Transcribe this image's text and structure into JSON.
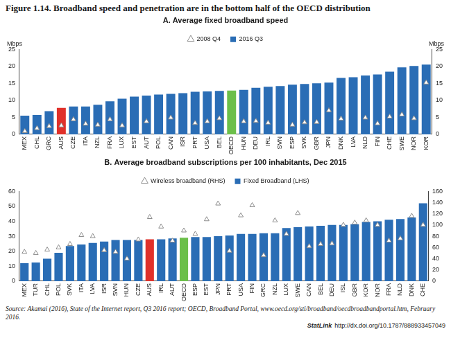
{
  "title": "Figure 1.14.  Broadband speed and penetration are in the bottom half of the OECD distribution",
  "chart_data": [
    {
      "type": "bar",
      "title": "A. Average fixed broadband speed",
      "ylabel": "Mbps",
      "y2label": "Mbps",
      "categories": [
        "MEX",
        "CHL",
        "GRC",
        "AUS",
        "CZE",
        "ITA",
        "NZL",
        "FRA",
        "LUX",
        "EST",
        "AUT",
        "POL",
        "CAN",
        "ISR",
        "PRT",
        "USA",
        "BEL",
        "OECD",
        "HUN",
        "DEU",
        "IRL",
        "SVN",
        "ESP",
        "SVK",
        "GBR",
        "JPN",
        "DNK",
        "LVA",
        "NLD",
        "FIN",
        "CHE",
        "SWE",
        "NOR",
        "KOR"
      ],
      "series": [
        {
          "name": "2016 Q3",
          "type": "bar",
          "colors": [
            "#2a6db5",
            "#2a6db5",
            "#2a6db5",
            "#e0302a",
            "#2a6db5",
            "#2a6db5",
            "#2a6db5",
            "#2a6db5",
            "#2a6db5",
            "#2a6db5",
            "#2a6db5",
            "#2a6db5",
            "#2a6db5",
            "#2a6db5",
            "#2a6db5",
            "#2a6db5",
            "#2a6db5",
            "#6cbf4a",
            "#2a6db5",
            "#2a6db5",
            "#2a6db5",
            "#2a6db5",
            "#2a6db5",
            "#2a6db5",
            "#2a6db5",
            "#2a6db5",
            "#2a6db5",
            "#2a6db5",
            "#2a6db5",
            "#2a6db5",
            "#2a6db5",
            "#2a6db5",
            "#2a6db5",
            "#2a6db5"
          ],
          "values": [
            5.5,
            5.7,
            6.8,
            7.8,
            8.2,
            8.2,
            8.7,
            9.7,
            10.5,
            11.1,
            11.4,
            11.7,
            11.9,
            12.1,
            12.5,
            12.6,
            12.8,
            12.9,
            13.1,
            13.7,
            14,
            14.2,
            14.6,
            14.8,
            15,
            15.2,
            16.6,
            16.8,
            17.3,
            17.6,
            18.4,
            19.7,
            20.1,
            20.5
          ]
        },
        {
          "name": "2008 Q4",
          "type": "scatter",
          "marker": "triangle",
          "color": "#8c8c8c",
          "values": [
            0.9,
            1.8,
            2.4,
            2.6,
            4.4,
            3.1,
            2.8,
            4.4,
            2.6,
            null,
            3.8,
            null,
            4.9,
            null,
            3.3,
            3.8,
            4.7,
            null,
            3.8,
            3.9,
            3.4,
            null,
            2.8,
            3.5,
            3.6,
            7,
            4.6,
            null,
            4.9,
            3.2,
            5.2,
            5.8,
            4.7,
            15.2
          ]
        }
      ],
      "ylim": [
        0,
        25
      ],
      "yticks": [
        0,
        5,
        10,
        15,
        20,
        25
      ],
      "y2lim": [
        0,
        25
      ],
      "y2ticks": [
        0,
        5,
        10,
        15,
        20,
        25
      ],
      "grid": false,
      "legend": "top"
    },
    {
      "type": "bar",
      "title": "B. Average broadband subscriptions per 100 inhabitants, Dec 2015",
      "categories": [
        "MEX",
        "TUR",
        "CHL",
        "POL",
        "SVK",
        "ITA",
        "LVA",
        "ISR",
        "SVN",
        "HUN",
        "CZE",
        "AUS",
        "IRL",
        "AUT",
        "OECD",
        "ESP",
        "EST",
        "JPN",
        "PRT",
        "USA",
        "FIN",
        "GRC",
        "NZL",
        "LUX",
        "SWE",
        "CAN",
        "BEL",
        "DEU",
        "ISL",
        "GBR",
        "KOR",
        "NOR",
        "FRA",
        "NLD",
        "DNK",
        "CHE"
      ],
      "series": [
        {
          "name": "Fixed Broadband (LHS)",
          "type": "bar",
          "colors": [
            "#2a6db5",
            "#2a6db5",
            "#2a6db5",
            "#2a6db5",
            "#2a6db5",
            "#2a6db5",
            "#2a6db5",
            "#2a6db5",
            "#2a6db5",
            "#2a6db5",
            "#2a6db5",
            "#e0302a",
            "#2a6db5",
            "#2a6db5",
            "#6cbf4a",
            "#2a6db5",
            "#2a6db5",
            "#2a6db5",
            "#2a6db5",
            "#2a6db5",
            "#2a6db5",
            "#2a6db5",
            "#2a6db5",
            "#2a6db5",
            "#2a6db5",
            "#2a6db5",
            "#2a6db5",
            "#2a6db5",
            "#2a6db5",
            "#2a6db5",
            "#2a6db5",
            "#2a6db5",
            "#2a6db5",
            "#2a6db5",
            "#2a6db5",
            "#2a6db5"
          ],
          "values": [
            12,
            12.5,
            15,
            19,
            23.5,
            24.5,
            25.5,
            26.5,
            27.5,
            27.5,
            27.5,
            28,
            28,
            28.5,
            29,
            29.5,
            29.5,
            30,
            30.5,
            31.5,
            31.5,
            32,
            32,
            35.5,
            36,
            36.5,
            37,
            37.5,
            37.5,
            38,
            39.5,
            40,
            41,
            41.5,
            42.5,
            52
          ]
        },
        {
          "name": "Wireless broadband (RHS)",
          "type": "scatter",
          "marker": "triangle",
          "color": "#8c8c8c",
          "axis": "y2",
          "values": [
            52,
            50,
            56,
            60,
            66,
            82,
            80,
            55,
            52,
            40,
            74,
            114,
            97,
            72,
            90,
            84,
            110,
            138,
            54,
            117,
            135,
            46,
            108,
            84,
            121,
            62,
            66,
            67,
            100,
            104,
            108,
            100,
            72,
            76,
            116,
            100
          ]
        }
      ],
      "ylim": [
        0,
        60
      ],
      "yticks": [
        0,
        10,
        20,
        30,
        40,
        50,
        60
      ],
      "y2lim": [
        0,
        160
      ],
      "y2ticks": [
        0,
        20,
        40,
        60,
        80,
        100,
        120,
        140,
        160
      ],
      "grid": false,
      "legend": "top"
    }
  ],
  "source": "Source: Akamai (2016), State of the Internet report, Q3 2016 report; OECD, Broadband Portal, www.oecd.org/sti/broadband/oecdbroadbandportal.htm, February 2016.",
  "statlink_label": "StatLink",
  "statlink_url": "http://dx.doi.org/10.1787/888933457049"
}
